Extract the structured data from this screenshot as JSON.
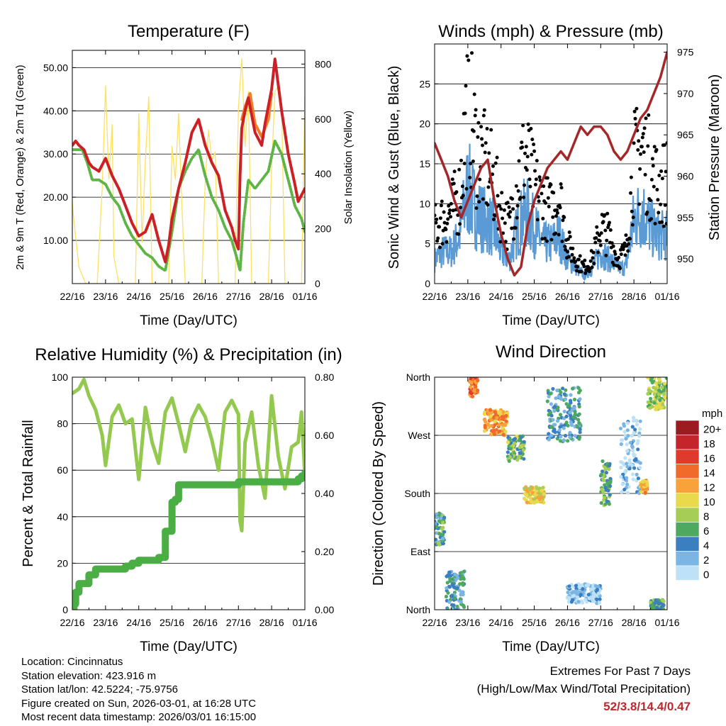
{
  "panels": {
    "temperature": {
      "title": "Temperature (F)",
      "ylabel_left": "2m & 9m T (Red, Orange) & 2m Td (Green)",
      "ylabel_right": "Solar Insolation (Yellow)",
      "xlabel": "Time (Day/UTC)"
    },
    "winds": {
      "title": "Winds (mph) & Pressure (mb)",
      "ylabel_left": "Sonic Wind & Gust (Blue, Black)",
      "ylabel_right": "Station Pressure (Maroon)",
      "xlabel": "Time (Day/UTC)"
    },
    "humidity": {
      "title": "Relative Humidity (%) & Precipitation (in)",
      "ylabel_left": "Percent & Total Rainfall",
      "xlabel": "Time (Day/UTC)"
    },
    "direction": {
      "title": "Wind Direction",
      "ylabel_left": "Direction (Colored By Speed)",
      "xlabel": "Time (Day/UTC)"
    }
  },
  "colorbar": {
    "title": "mph",
    "labels": [
      "20+",
      "18",
      "16",
      "14",
      "12",
      "10",
      "8",
      "6",
      "4",
      "2",
      "0"
    ],
    "colors": [
      "#9b1b1e",
      "#c4252a",
      "#e03a2c",
      "#f06a2a",
      "#f9a23b",
      "#e9d94c",
      "#a6cd55",
      "#4ea860",
      "#3b7fc0",
      "#7bb5e3",
      "#bde2f7"
    ]
  },
  "info": {
    "location": "Location: Cincinnatus",
    "elevation": "Station elevation: 423.916 m",
    "latlon": "Station lat/lon: 42.5224; -75.9756",
    "created": "Figure created on Sun, 2026-03-01, at 16:28 UTC",
    "recent": "Most recent data timestamp: 2026/03/01 16:15:00"
  },
  "extremes": {
    "line1": "Extremes For Past 7 Days",
    "line2": "(High/Low/Max Wind/Total Precipitation)",
    "values": "52/3.8/14.4/0.47"
  },
  "chart_data": [
    {
      "type": "line",
      "title": "Temperature (F)",
      "xlabel": "Time (Day/UTC)",
      "ylabel": "2m & 9m T (Red, Orange) & 2m Td (Green)",
      "y2label": "Solar Insolation (Yellow)",
      "x_ticks": [
        "22/16",
        "23/16",
        "24/16",
        "25/16",
        "26/16",
        "27/16",
        "28/16",
        "01/16"
      ],
      "ylim": [
        0,
        54
      ],
      "y_ticks": [
        "10.00",
        "20.00",
        "30.00",
        "40.00",
        "50.00"
      ],
      "y2lim": [
        0,
        850
      ],
      "y2_ticks": [
        "0",
        "200",
        "400",
        "600",
        "800"
      ],
      "series": [
        {
          "name": "2m T",
          "color": "#cc2027",
          "x": [
            0,
            0.1,
            0.2,
            0.35,
            0.5,
            0.6,
            0.8,
            1.0,
            1.2,
            1.4,
            1.6,
            1.8,
            2.0,
            2.2,
            2.4,
            2.6,
            2.8,
            2.9,
            3.0,
            3.2,
            3.4,
            3.6,
            3.8,
            4.0,
            4.2,
            4.4,
            4.6,
            4.8,
            4.9,
            5.0,
            5.05,
            5.1,
            5.2,
            5.3,
            5.5,
            5.7,
            5.8,
            6.0,
            6.1,
            6.3,
            6.5,
            6.7,
            6.8,
            7.0
          ],
          "values": [
            32,
            33,
            32,
            31,
            28,
            27,
            26,
            29,
            25,
            22,
            18,
            14,
            11,
            12,
            16,
            10,
            5,
            9,
            15,
            22,
            28,
            35,
            38,
            32,
            28,
            25,
            17,
            13,
            10,
            8,
            25,
            36,
            40,
            43,
            35,
            32,
            37,
            45,
            52,
            40,
            30,
            23,
            19,
            22
          ]
        },
        {
          "name": "9m T",
          "color": "#f07e26",
          "x": [
            5.1,
            5.2,
            5.35,
            5.5,
            5.7,
            5.9,
            6.0
          ],
          "values": [
            38,
            41,
            44,
            37,
            34,
            38,
            44
          ]
        },
        {
          "name": "2m Td",
          "color": "#5fb446",
          "x": [
            0,
            0.2,
            0.3,
            0.45,
            0.6,
            0.8,
            1.0,
            1.2,
            1.4,
            1.6,
            1.8,
            2.0,
            2.2,
            2.4,
            2.6,
            2.8,
            3.0,
            3.2,
            3.4,
            3.6,
            3.8,
            4.0,
            4.2,
            4.4,
            4.6,
            4.8,
            4.95,
            5.05,
            5.15,
            5.3,
            5.5,
            5.7,
            5.9,
            6.1,
            6.3,
            6.5,
            6.7,
            6.9,
            7.0
          ],
          "values": [
            31,
            31,
            31,
            28,
            24,
            24,
            23,
            20,
            18,
            14,
            11,
            9,
            7,
            6,
            4,
            3,
            12,
            22,
            26,
            29,
            31,
            25,
            20,
            17,
            13,
            10,
            6,
            3,
            14,
            24,
            22,
            24,
            26,
            33,
            30,
            24,
            18,
            15,
            12
          ]
        },
        {
          "name": "Solar Insolation",
          "color": "#fce160",
          "axis": "right",
          "x": [
            0,
            0.03,
            0.2,
            0.4,
            0.75,
            0.9,
            1.0,
            1.1,
            1.2,
            1.25,
            1.4,
            1.9,
            2.0,
            2.1,
            2.2,
            2.3,
            2.4,
            2.9,
            3.0,
            3.1,
            3.2,
            3.3,
            3.4,
            3.9,
            4.0,
            4.1,
            4.2,
            4.3,
            4.4,
            4.9,
            5.0,
            5.1,
            5.2,
            5.3,
            5.4,
            5.9,
            6.0,
            6.1,
            6.2,
            6.3,
            6.4,
            6.9,
            7.0
          ],
          "values": [
            300,
            250,
            60,
            0,
            0,
            350,
            720,
            380,
            580,
            100,
            0,
            0,
            620,
            150,
            450,
            680,
            0,
            0,
            500,
            380,
            620,
            280,
            0,
            0,
            370,
            560,
            450,
            480,
            0,
            0,
            640,
            820,
            500,
            700,
            0,
            0,
            420,
            700,
            720,
            650,
            0,
            0,
            680
          ]
        }
      ]
    },
    {
      "type": "scatter",
      "title": "Winds (mph) & Pressure (mb)",
      "xlabel": "Time (Day/UTC)",
      "ylabel": "Sonic Wind & Gust (Blue, Black)",
      "y2label": "Station Pressure (Maroon)",
      "x_ticks": [
        "22/16",
        "23/16",
        "24/16",
        "25/16",
        "26/16",
        "27/16",
        "28/16",
        "01/16"
      ],
      "ylim": [
        0,
        30
      ],
      "y_ticks": [
        "0",
        "5",
        "10",
        "15",
        "20",
        "25"
      ],
      "y2lim": [
        947,
        976
      ],
      "y2_ticks": [
        "950",
        "955",
        "960",
        "965",
        "970",
        "975"
      ],
      "series": [
        {
          "name": "Gust",
          "color": "#000000",
          "x": [
            0,
            0.25,
            0.5,
            0.75,
            1.0,
            1.25,
            1.5,
            1.75,
            2.0,
            2.25,
            2.5,
            2.75,
            3.0,
            3.25,
            3.5,
            3.75,
            4.0,
            4.25,
            4.5,
            4.75,
            5.0,
            5.25,
            5.5,
            5.75,
            6.0,
            6.25,
            6.5,
            6.75,
            7.0
          ],
          "values": [
            7,
            8,
            9,
            11,
            23,
            17,
            15,
            13,
            9,
            7,
            13,
            16,
            12,
            10,
            9,
            11,
            5,
            3,
            2,
            3,
            7,
            6,
            3,
            4,
            15,
            17,
            14,
            12,
            13
          ]
        },
        {
          "name": "Sonic Wind",
          "color": "#5b9bd5",
          "x": [
            0,
            0.25,
            0.5,
            0.75,
            1.0,
            1.25,
            1.5,
            1.75,
            2.0,
            2.25,
            2.5,
            2.75,
            3.0,
            3.25,
            3.5,
            3.75,
            4.0,
            4.25,
            4.5,
            4.75,
            5.0,
            5.25,
            5.5,
            5.75,
            6.0,
            6.25,
            6.5,
            6.75,
            7.0
          ],
          "values": [
            3,
            4,
            4,
            6,
            12,
            9,
            8,
            7,
            4,
            3,
            7,
            9,
            7,
            5,
            5,
            6,
            3,
            2,
            1,
            2,
            4,
            3,
            2,
            2,
            8,
            9,
            7,
            6,
            6
          ]
        },
        {
          "name": "Station Pressure",
          "color": "#a4282a",
          "axis": "right",
          "x": [
            0,
            0.2,
            0.4,
            0.6,
            0.8,
            1.0,
            1.2,
            1.4,
            1.6,
            1.8,
            2.0,
            2.2,
            2.4,
            2.6,
            2.8,
            3.0,
            3.2,
            3.4,
            3.6,
            3.8,
            4.0,
            4.2,
            4.4,
            4.6,
            4.8,
            5.0,
            5.2,
            5.4,
            5.6,
            5.8,
            6.0,
            6.2,
            6.4,
            6.6,
            6.8,
            7.0
          ],
          "values": [
            964,
            962,
            960,
            957,
            955,
            957,
            959,
            961,
            962,
            957,
            953,
            950,
            948,
            949,
            954,
            957,
            959,
            961,
            962,
            963,
            962,
            964,
            966,
            965,
            966,
            966,
            965,
            963,
            962,
            963,
            965,
            967,
            968,
            970,
            972,
            975
          ]
        }
      ]
    },
    {
      "type": "line",
      "title": "Relative Humidity (%) & Precipitation (in)",
      "xlabel": "Time (Day/UTC)",
      "ylabel": "Percent & Total Rainfall",
      "x_ticks": [
        "22/16",
        "23/16",
        "24/16",
        "25/16",
        "26/16",
        "27/16",
        "28/16",
        "01/16"
      ],
      "ylim": [
        0,
        100
      ],
      "y_ticks": [
        "0",
        "20",
        "40",
        "60",
        "80",
        "100"
      ],
      "y2lim": [
        0,
        0.8
      ],
      "y2_ticks": [
        "0.00",
        "0.20",
        "0.40",
        "0.60",
        "0.80"
      ],
      "series": [
        {
          "name": "Relative Humidity",
          "color": "#92c94e",
          "x": [
            0,
            0.2,
            0.35,
            0.5,
            0.7,
            0.9,
            1.0,
            1.2,
            1.4,
            1.6,
            1.8,
            2.0,
            2.2,
            2.4,
            2.6,
            2.8,
            3.0,
            3.2,
            3.4,
            3.6,
            3.8,
            4.0,
            4.2,
            4.4,
            4.6,
            4.8,
            5.0,
            5.05,
            5.1,
            5.2,
            5.4,
            5.6,
            5.8,
            6.0,
            6.2,
            6.4,
            6.6,
            6.8,
            6.9,
            7.0
          ],
          "values": [
            93,
            95,
            99,
            92,
            86,
            75,
            62,
            83,
            88,
            80,
            82,
            56,
            87,
            72,
            63,
            85,
            91,
            80,
            68,
            82,
            88,
            83,
            73,
            60,
            85,
            90,
            84,
            38,
            34,
            72,
            85,
            62,
            48,
            92,
            66,
            52,
            70,
            72,
            85,
            58
          ]
        },
        {
          "name": "Total Precipitation",
          "color": "#4aae45",
          "axis": "right",
          "x": [
            0,
            0.05,
            0.1,
            0.2,
            0.3,
            0.5,
            0.7,
            1.0,
            1.5,
            1.6,
            1.8,
            2.0,
            2.5,
            2.6,
            2.8,
            3.0,
            3.1,
            3.2,
            3.5,
            4.0,
            4.5,
            5.0,
            6.0,
            6.6,
            6.8,
            6.9,
            7.0
          ],
          "values": [
            0.0,
            0.02,
            0.06,
            0.09,
            0.09,
            0.12,
            0.14,
            0.14,
            0.14,
            0.15,
            0.16,
            0.17,
            0.17,
            0.18,
            0.27,
            0.37,
            0.38,
            0.43,
            0.43,
            0.43,
            0.43,
            0.44,
            0.44,
            0.44,
            0.45,
            0.46,
            0.47
          ]
        }
      ]
    },
    {
      "type": "scatter",
      "title": "Wind Direction",
      "xlabel": "Time (Day/UTC)",
      "ylabel": "Direction (Colored By Speed)",
      "x_ticks": [
        "22/16",
        "23/16",
        "24/16",
        "25/16",
        "26/16",
        "27/16",
        "28/16",
        "01/16"
      ],
      "y_ticks": [
        "North",
        "East",
        "South",
        "West",
        "North"
      ],
      "ylim": [
        0,
        360
      ],
      "color_scale": "mph",
      "clusters": [
        {
          "x": [
            0.0,
            0.3
          ],
          "dir": [
            100,
            150
          ],
          "speed": 5
        },
        {
          "x": [
            0.35,
            0.9
          ],
          "dir": [
            0,
            60
          ],
          "speed": 4
        },
        {
          "x": [
            1.05,
            1.3
          ],
          "dir": [
            330,
            360
          ],
          "speed": 14
        },
        {
          "x": [
            1.5,
            2.2
          ],
          "dir": [
            270,
            310
          ],
          "speed": 12
        },
        {
          "x": [
            2.2,
            2.7
          ],
          "dir": [
            230,
            270
          ],
          "speed": 7
        },
        {
          "x": [
            2.7,
            3.3
          ],
          "dir": [
            165,
            190
          ],
          "speed": 10
        },
        {
          "x": [
            3.4,
            4.4
          ],
          "dir": [
            260,
            345
          ],
          "speed": 4
        },
        {
          "x": [
            4.0,
            5.0
          ],
          "dir": [
            10,
            40
          ],
          "speed": 1
        },
        {
          "x": [
            5.0,
            5.3
          ],
          "dir": [
            160,
            230
          ],
          "speed": 6
        },
        {
          "x": [
            5.6,
            6.2
          ],
          "dir": [
            180,
            300
          ],
          "speed": 1
        },
        {
          "x": [
            6.2,
            6.4
          ],
          "dir": [
            180,
            200
          ],
          "speed": 12
        },
        {
          "x": [
            6.4,
            7.0
          ],
          "dir": [
            310,
            360
          ],
          "speed": 8
        },
        {
          "x": [
            6.5,
            6.9
          ],
          "dir": [
            0,
            15
          ],
          "speed": 6
        }
      ]
    }
  ]
}
